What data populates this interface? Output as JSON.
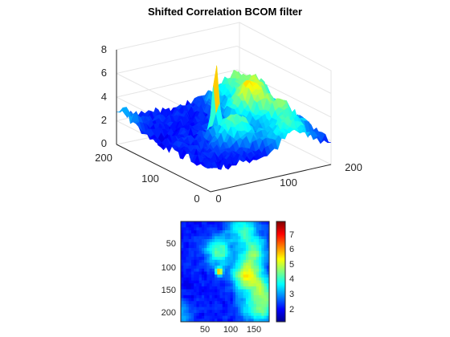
{
  "chart_data": [
    {
      "type": "surface",
      "title": "Shifted Correlation BCOM filter",
      "xlabel": "",
      "ylabel": "",
      "zlabel": "",
      "xlim": [
        0,
        220
      ],
      "ylim": [
        0,
        220
      ],
      "zlim": [
        0,
        8
      ],
      "x_ticks": [
        "0",
        "100",
        "200"
      ],
      "y_ticks": [
        "0",
        "100",
        "200"
      ],
      "z_ticks": [
        "0",
        "2",
        "4",
        "6",
        "8"
      ],
      "grid": true,
      "colormap": "jet",
      "peak": {
        "x": 95,
        "y": 110,
        "z": 7.6
      },
      "baseline_z": 1.5
    },
    {
      "type": "heatmap",
      "title": "",
      "xlim": [
        1,
        220
      ],
      "ylim": [
        1,
        220
      ],
      "x_ticks": [
        "50",
        "100",
        "150"
      ],
      "y_ticks": [
        "50",
        "100",
        "150",
        "200"
      ],
      "colormap": "jet",
      "peak": {
        "x": 95,
        "y": 110,
        "value": 7.6
      },
      "colorbar": {
        "min": 1,
        "max": 7.6,
        "ticks": [
          "2",
          "3",
          "4",
          "5",
          "6",
          "7"
        ]
      }
    }
  ],
  "colors": {
    "axis": "#262626",
    "grid": "#dcdcdc",
    "background": "#ffffff"
  }
}
